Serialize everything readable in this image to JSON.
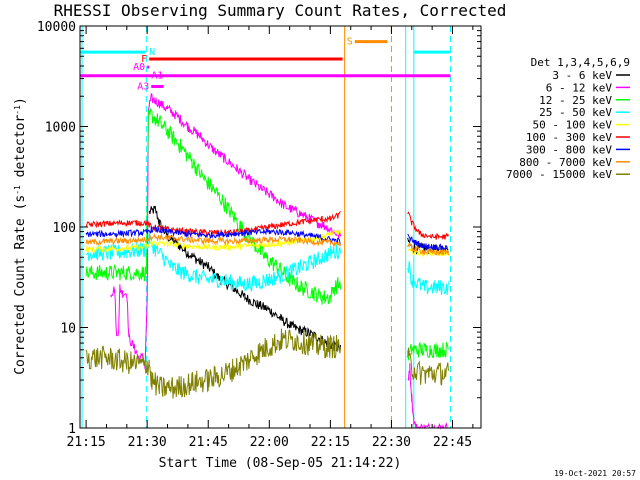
{
  "chart_data": {
    "type": "line",
    "title": "RHESSI Observing Summary Count Rates, Corrected",
    "xlabel": "Start Time (08-Sep-05 21:14:22)",
    "ylabel_main": "Corrected Count Rate (s",
    "ylabel_sup1": "-1",
    "ylabel_mid": " detector",
    "ylabel_sup2": "-1",
    "ylabel_end": ")",
    "y_scale": "log",
    "ylim": [
      1,
      10000
    ],
    "xlim_minutes": [
      -1.5,
      97
    ],
    "x_ticks": [
      {
        "label": "21:15",
        "minute": 0
      },
      {
        "label": "21:30",
        "minute": 15
      },
      {
        "label": "21:45",
        "minute": 30
      },
      {
        "label": "22:00",
        "minute": 45
      },
      {
        "label": "22:15",
        "minute": 60
      },
      {
        "label": "22:30",
        "minute": 75
      },
      {
        "label": "22:45",
        "minute": 90
      }
    ],
    "y_ticks": [
      {
        "label": "1",
        "value": 1
      },
      {
        "label": "10",
        "value": 10
      },
      {
        "label": "100",
        "value": 100
      },
      {
        "label": "1000",
        "value": 1000
      },
      {
        "label": "10000",
        "value": 10000
      }
    ],
    "legend_title": "Det 1,3,4,5,6,9",
    "legend_position": "right",
    "footer_date": "19-Oct-2021 20:57",
    "gaps": [
      {
        "start": 63,
        "end": 79
      }
    ],
    "series": [
      {
        "name": "3 - 6 keV",
        "color": "#000000",
        "noise": 0.05,
        "points": [
          [
            15.5,
            140
          ],
          [
            17,
            150
          ],
          [
            18,
            110
          ],
          [
            20,
            80
          ],
          [
            22,
            70
          ],
          [
            25,
            55
          ],
          [
            28,
            45
          ],
          [
            30,
            40
          ],
          [
            33,
            30
          ],
          [
            36,
            25
          ],
          [
            39,
            20
          ],
          [
            42,
            17
          ],
          [
            45,
            15
          ],
          [
            48,
            12
          ],
          [
            51,
            10
          ],
          [
            54,
            9
          ],
          [
            57,
            8
          ],
          [
            59,
            7
          ],
          [
            61,
            6.5
          ],
          [
            62.5,
            6
          ],
          [
            79,
            75
          ],
          [
            80,
            62
          ],
          [
            83,
            60
          ],
          [
            86,
            60
          ],
          [
            89,
            60
          ]
        ]
      },
      {
        "name": "6 - 12 keV",
        "color": "#ff00ff",
        "noise": 0.05,
        "points": [
          [
            6,
            22
          ],
          [
            7,
            24
          ],
          [
            7.5,
            8
          ],
          [
            8,
            10
          ],
          [
            8.3,
            25
          ],
          [
            9,
            22
          ],
          [
            10,
            22
          ],
          [
            10.5,
            8
          ],
          [
            12,
            6
          ],
          [
            13,
            5
          ],
          [
            14,
            5
          ],
          [
            14.5,
            4
          ],
          [
            15,
            20
          ],
          [
            15.3,
            1500
          ],
          [
            16,
            1900
          ],
          [
            17,
            1800
          ],
          [
            18,
            1700
          ],
          [
            20,
            1500
          ],
          [
            22,
            1300
          ],
          [
            25,
            1000
          ],
          [
            28,
            800
          ],
          [
            31,
            600
          ],
          [
            34,
            480
          ],
          [
            37,
            380
          ],
          [
            40,
            300
          ],
          [
            43,
            240
          ],
          [
            46,
            200
          ],
          [
            49,
            160
          ],
          [
            52,
            140
          ],
          [
            55,
            120
          ],
          [
            57,
            110
          ],
          [
            59,
            100
          ],
          [
            61,
            90
          ],
          [
            62.5,
            80
          ],
          [
            78.5,
            80
          ],
          [
            79,
            3
          ],
          [
            79.5,
            4
          ],
          [
            80,
            2
          ],
          [
            80.5,
            1.2
          ],
          [
            81,
            1
          ],
          [
            83,
            1
          ],
          [
            85,
            1
          ],
          [
            89,
            1
          ]
        ]
      },
      {
        "name": "12 - 25 keV",
        "color": "#00ff00",
        "noise": 0.08,
        "points": [
          [
            0,
            35
          ],
          [
            5,
            35
          ],
          [
            10,
            35
          ],
          [
            14.8,
            35
          ],
          [
            15.3,
            1200
          ],
          [
            16,
            1300
          ],
          [
            18,
            1100
          ],
          [
            20,
            900
          ],
          [
            23,
            650
          ],
          [
            26,
            450
          ],
          [
            29,
            300
          ],
          [
            32,
            220
          ],
          [
            35,
            150
          ],
          [
            38,
            100
          ],
          [
            41,
            70
          ],
          [
            44,
            50
          ],
          [
            47,
            40
          ],
          [
            50,
            30
          ],
          [
            53,
            25
          ],
          [
            56,
            22
          ],
          [
            58,
            20
          ],
          [
            60,
            20
          ],
          [
            61,
            25
          ],
          [
            62.5,
            28
          ],
          [
            79,
            5
          ],
          [
            80,
            6
          ],
          [
            83,
            6
          ],
          [
            86,
            6
          ],
          [
            89,
            6
          ]
        ]
      },
      {
        "name": "25 - 50 keV",
        "color": "#00ffff",
        "noise": 0.08,
        "points": [
          [
            0,
            55
          ],
          [
            5,
            55
          ],
          [
            10,
            57
          ],
          [
            14.8,
            60
          ],
          [
            15.5,
            75
          ],
          [
            17,
            60
          ],
          [
            19,
            50
          ],
          [
            21,
            40
          ],
          [
            24,
            35
          ],
          [
            27,
            32
          ],
          [
            30,
            30
          ],
          [
            33,
            30
          ],
          [
            36,
            28
          ],
          [
            39,
            27
          ],
          [
            42,
            28
          ],
          [
            45,
            30
          ],
          [
            48,
            33
          ],
          [
            51,
            37
          ],
          [
            54,
            42
          ],
          [
            57,
            48
          ],
          [
            60,
            55
          ],
          [
            62.5,
            58
          ],
          [
            79,
            45
          ],
          [
            80,
            30
          ],
          [
            83,
            25
          ],
          [
            86,
            25
          ],
          [
            89,
            25
          ]
        ]
      },
      {
        "name": "50 - 100 keV",
        "color": "#ffff00",
        "noise": 0.03,
        "points": [
          [
            0,
            60
          ],
          [
            5,
            60
          ],
          [
            10,
            62
          ],
          [
            14.8,
            63
          ],
          [
            16,
            70
          ],
          [
            20,
            68
          ],
          [
            25,
            65
          ],
          [
            30,
            63
          ],
          [
            35,
            63
          ],
          [
            40,
            65
          ],
          [
            45,
            67
          ],
          [
            50,
            70
          ],
          [
            55,
            75
          ],
          [
            58,
            80
          ],
          [
            60,
            85
          ],
          [
            62.5,
            90
          ],
          [
            79,
            58
          ],
          [
            82,
            55
          ],
          [
            85,
            55
          ],
          [
            89,
            55
          ]
        ]
      },
      {
        "name": "100 - 300 keV",
        "color": "#ff0000",
        "noise": 0.03,
        "points": [
          [
            0,
            105
          ],
          [
            5,
            108
          ],
          [
            10,
            110
          ],
          [
            14.8,
            110
          ],
          [
            16,
            100
          ],
          [
            20,
            95
          ],
          [
            25,
            90
          ],
          [
            30,
            88
          ],
          [
            35,
            88
          ],
          [
            40,
            92
          ],
          [
            45,
            100
          ],
          [
            50,
            108
          ],
          [
            55,
            115
          ],
          [
            58,
            120
          ],
          [
            60,
            120
          ],
          [
            62,
            130
          ],
          [
            62.5,
            150
          ],
          [
            79,
            140
          ],
          [
            80,
            110
          ],
          [
            82,
            85
          ],
          [
            85,
            80
          ],
          [
            89,
            80
          ]
        ]
      },
      {
        "name": "300 - 800 keV",
        "color": "#0000ff",
        "noise": 0.03,
        "points": [
          [
            0,
            85
          ],
          [
            5,
            85
          ],
          [
            10,
            87
          ],
          [
            14.8,
            88
          ],
          [
            16,
            95
          ],
          [
            20,
            90
          ],
          [
            25,
            85
          ],
          [
            30,
            83
          ],
          [
            35,
            85
          ],
          [
            40,
            88
          ],
          [
            45,
            90
          ],
          [
            50,
            88
          ],
          [
            55,
            82
          ],
          [
            58,
            78
          ],
          [
            60,
            75
          ],
          [
            62.5,
            72
          ],
          [
            79,
            80
          ],
          [
            81,
            70
          ],
          [
            83,
            65
          ],
          [
            86,
            63
          ],
          [
            89,
            62
          ]
        ]
      },
      {
        "name": "800 - 7000 keV",
        "color": "#ff8c00",
        "noise": 0.03,
        "points": [
          [
            0,
            70
          ],
          [
            5,
            72
          ],
          [
            10,
            73
          ],
          [
            14.8,
            75
          ],
          [
            16,
            80
          ],
          [
            20,
            78
          ],
          [
            25,
            75
          ],
          [
            30,
            73
          ],
          [
            35,
            72
          ],
          [
            40,
            73
          ],
          [
            45,
            75
          ],
          [
            50,
            75
          ],
          [
            55,
            72
          ],
          [
            58,
            70
          ],
          [
            60,
            70
          ],
          [
            62.5,
            68
          ],
          [
            79,
            65
          ],
          [
            81,
            60
          ],
          [
            83,
            57
          ],
          [
            86,
            56
          ],
          [
            89,
            56
          ]
        ]
      },
      {
        "name": "7000 - 15000 keV",
        "color": "#808000",
        "noise": 0.12,
        "points": [
          [
            0,
            5
          ],
          [
            5,
            5
          ],
          [
            10,
            4.5
          ],
          [
            14.8,
            4.2
          ],
          [
            15.5,
            4.5
          ],
          [
            16,
            3
          ],
          [
            18,
            2.5
          ],
          [
            22,
            2.5
          ],
          [
            26,
            2.8
          ],
          [
            30,
            3
          ],
          [
            33,
            3.3
          ],
          [
            36,
            3.8
          ],
          [
            39,
            4.5
          ],
          [
            42,
            5.5
          ],
          [
            45,
            6.5
          ],
          [
            48,
            7.5
          ],
          [
            51,
            7.5
          ],
          [
            54,
            7
          ],
          [
            57,
            6.5
          ],
          [
            60,
            6.5
          ],
          [
            62.5,
            6.5
          ],
          [
            79,
            5
          ],
          [
            80,
            4
          ],
          [
            82,
            3.5
          ],
          [
            85,
            3.5
          ],
          [
            89,
            3.5
          ]
        ]
      }
    ],
    "flags": [
      {
        "label": "N",
        "color": "#00ffff",
        "value": 5500,
        "segments": [
          [
            -1.5,
            14.5
          ],
          [
            80.5,
            89.5
          ]
        ]
      },
      {
        "label": "F",
        "color": "#ff0000",
        "value": 4700,
        "segments": [
          [
            15.5,
            63
          ]
        ]
      },
      {
        "label": "S",
        "color": "#ff8c00",
        "value": 7000,
        "segments": [
          [
            66,
            74
          ]
        ]
      },
      {
        "label": "A0",
        "color": "#ff00ff",
        "value": 3900,
        "segments": [
          [
            15,
            15.5
          ]
        ]
      },
      {
        "label": "A1",
        "color": "#ff00ff",
        "value": 3200,
        "segments": [
          [
            -1.5,
            89.5
          ]
        ]
      },
      {
        "label": "A3",
        "color": "#ff00ff",
        "value": 2500,
        "segments": [
          [
            16,
            19
          ]
        ]
      }
    ],
    "vlines": [
      {
        "minute": -1,
        "color": "#00ffff",
        "dashed": false
      },
      {
        "minute": 14.8,
        "color": "#00ffff",
        "dashed": true
      },
      {
        "minute": 63.5,
        "color": "#ff8c00",
        "dashed": false
      },
      {
        "minute": 75,
        "color": "#ff8c00",
        "dashed": true
      },
      {
        "minute": 78.5,
        "color": "#00ffff",
        "dashed": false
      },
      {
        "minute": 80.5,
        "color": "#00ffff",
        "dashed": false
      },
      {
        "minute": 89.5,
        "color": "#00ffff",
        "dashed": true
      }
    ]
  }
}
